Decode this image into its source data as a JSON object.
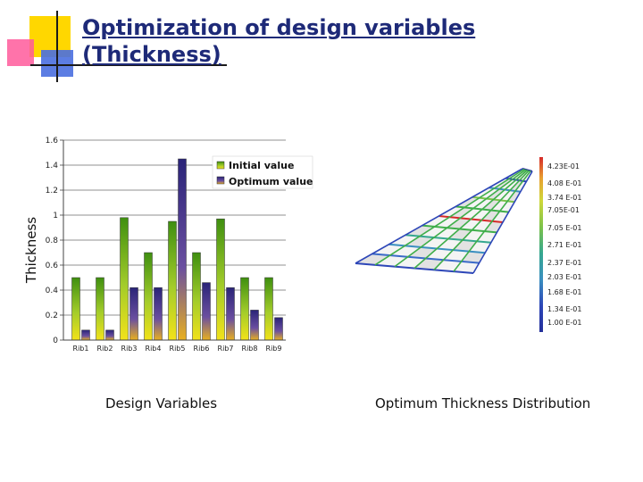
{
  "slide": {
    "title_line1": "Optimization of design variables",
    "title_line2": "(Thickness)",
    "caption_left": "Design Variables",
    "caption_right": "Optimum Thickness Distribution",
    "accent_colors": {
      "yellow": "#ffd700",
      "pink": "#ff5a9b",
      "blue": "#4a6fe0",
      "title": "#1e2a78"
    }
  },
  "chart_data": [
    {
      "type": "bar",
      "title": "",
      "xlabel": "",
      "ylabel": "Thickness",
      "ylim": [
        0,
        1.6
      ],
      "yticks": [
        "0",
        "0.2",
        "0.4",
        "0.6",
        "0.8",
        "1",
        "1.2",
        "1.4",
        "1.6"
      ],
      "categories": [
        "Rib1",
        "Rib2",
        "Rib3",
        "Rib4",
        "Rib5",
        "Rib6",
        "Rib7",
        "Rib8",
        "Rib9"
      ],
      "series": [
        {
          "name": "Initial value",
          "color": "#6aa51c",
          "values": [
            0.5,
            0.5,
            0.98,
            0.7,
            0.95,
            0.7,
            0.97,
            0.5,
            0.5
          ]
        },
        {
          "name": "Optimum value",
          "color": "#3a2e8c",
          "values": [
            0.08,
            0.08,
            0.42,
            0.42,
            1.45,
            0.46,
            0.42,
            0.24,
            0.18
          ]
        }
      ],
      "grid": true,
      "legend_position": "top-right"
    },
    {
      "type": "heatmap",
      "title": "",
      "colorbar_labels": [
        "4.23E-01",
        "4.08 E-01",
        "3.74 E-01",
        "7.05E-01",
        "7.05 E-01",
        "2.71 E-01",
        "2.37 E-01",
        "2.03 E-01",
        "1.68 E-01",
        "1.34 E-01",
        "1.00 E-01"
      ],
      "colorbar_colors": [
        "#d62a2a",
        "#e05a2a",
        "#e8a030",
        "#cfd83a",
        "#7cc24a",
        "#3fae4a",
        "#35a78f",
        "#3a8fc0",
        "#3a6ac8",
        "#2d46b8",
        "#24309a"
      ]
    }
  ]
}
